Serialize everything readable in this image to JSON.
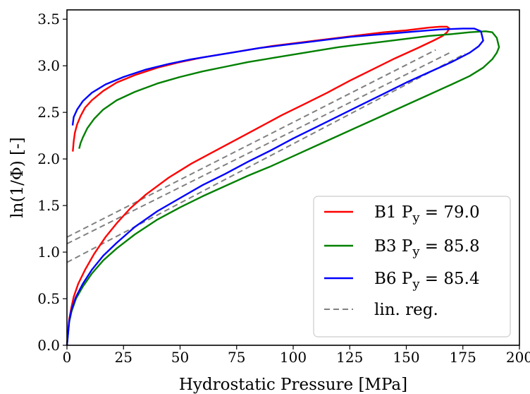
{
  "chart_data": {
    "type": "line",
    "xlabel": "Hydrostatic Pressure [MPa]",
    "ylabel": "ln(1/Φ) [-]",
    "xlim": [
      0,
      200
    ],
    "ylim": [
      0,
      3.6
    ],
    "xticks": [
      "0",
      "25",
      "50",
      "75",
      "100",
      "125",
      "150",
      "175",
      "200"
    ],
    "yticks": [
      "0.0",
      "0.5",
      "1.0",
      "1.5",
      "2.0",
      "2.5",
      "3.0",
      "3.5"
    ],
    "legend_position": "lower-right",
    "grid": false,
    "series": [
      {
        "name": "B1",
        "sub": "y",
        "value": "= 79.0",
        "color": "#ff0000",
        "style": "solid",
        "loading": {
          "x": [
            0,
            1,
            2,
            3,
            5,
            8,
            12,
            17,
            22,
            28,
            35,
            45,
            55,
            65,
            75,
            85,
            95,
            105,
            115,
            125,
            135,
            145,
            155,
            162,
            166,
            168,
            169
          ],
          "y": [
            0.0,
            0.28,
            0.41,
            0.52,
            0.66,
            0.81,
            0.98,
            1.16,
            1.31,
            1.47,
            1.62,
            1.8,
            1.95,
            2.08,
            2.21,
            2.34,
            2.47,
            2.59,
            2.71,
            2.84,
            2.96,
            3.08,
            3.19,
            3.27,
            3.32,
            3.36,
            3.4
          ]
        },
        "unloading": {
          "x": [
            169,
            168,
            165,
            160,
            150,
            140,
            130,
            120,
            110,
            100,
            90,
            80,
            70,
            60,
            50,
            40,
            30,
            22,
            16,
            11,
            8,
            6,
            4.5,
            3.5,
            3,
            2.6
          ],
          "y": [
            3.4,
            3.42,
            3.42,
            3.41,
            3.38,
            3.36,
            3.33,
            3.3,
            3.27,
            3.24,
            3.21,
            3.17,
            3.13,
            3.09,
            3.04,
            2.98,
            2.9,
            2.82,
            2.73,
            2.63,
            2.55,
            2.46,
            2.37,
            2.28,
            2.19,
            2.08
          ]
        }
      },
      {
        "name": "B3",
        "sub": "y",
        "value": "= 85.8",
        "color": "#008000",
        "style": "solid",
        "loading": {
          "x": [
            0,
            1,
            2,
            4,
            7,
            11,
            16,
            22,
            30,
            40,
            50,
            60,
            70,
            80,
            90,
            100,
            110,
            120,
            130,
            140,
            150,
            160,
            170,
            178,
            184,
            188,
            190,
            191
          ],
          "y": [
            0.0,
            0.25,
            0.36,
            0.5,
            0.63,
            0.77,
            0.91,
            1.04,
            1.19,
            1.35,
            1.48,
            1.6,
            1.71,
            1.82,
            1.92,
            2.03,
            2.14,
            2.25,
            2.36,
            2.47,
            2.58,
            2.69,
            2.8,
            2.89,
            2.98,
            3.07,
            3.14,
            3.2
          ]
        },
        "unloading": {
          "x": [
            191,
            190,
            188,
            185,
            178,
            170,
            160,
            150,
            140,
            130,
            120,
            110,
            100,
            90,
            80,
            70,
            60,
            50,
            40,
            30,
            22,
            16,
            12,
            9,
            7,
            6,
            5.4
          ],
          "y": [
            3.2,
            3.3,
            3.36,
            3.37,
            3.36,
            3.34,
            3.32,
            3.29,
            3.26,
            3.23,
            3.2,
            3.16,
            3.12,
            3.08,
            3.04,
            2.99,
            2.94,
            2.88,
            2.81,
            2.72,
            2.63,
            2.53,
            2.43,
            2.33,
            2.23,
            2.17,
            2.11
          ]
        }
      },
      {
        "name": "B6",
        "sub": "y",
        "value": "= 85.4",
        "color": "#0000ff",
        "style": "solid",
        "loading": {
          "x": [
            0,
            1,
            2,
            4,
            7,
            11,
            16,
            22,
            30,
            40,
            50,
            60,
            70,
            80,
            90,
            100,
            110,
            120,
            130,
            140,
            150,
            160,
            170,
            178,
            182,
            184
          ],
          "y": [
            0.0,
            0.26,
            0.38,
            0.52,
            0.66,
            0.81,
            0.96,
            1.1,
            1.27,
            1.44,
            1.58,
            1.72,
            1.84,
            1.97,
            2.09,
            2.22,
            2.34,
            2.46,
            2.58,
            2.7,
            2.82,
            2.93,
            3.04,
            3.14,
            3.21,
            3.27
          ]
        },
        "unloading": {
          "x": [
            184,
            183,
            180,
            175,
            165,
            155,
            145,
            135,
            125,
            115,
            105,
            95,
            85,
            75,
            65,
            55,
            45,
            35,
            25,
            17,
            11,
            7,
            4.5,
            3,
            2.5
          ],
          "y": [
            3.27,
            3.37,
            3.4,
            3.4,
            3.39,
            3.37,
            3.35,
            3.33,
            3.31,
            3.28,
            3.25,
            3.22,
            3.19,
            3.15,
            3.11,
            3.07,
            3.02,
            2.96,
            2.88,
            2.8,
            2.71,
            2.62,
            2.53,
            2.45,
            2.36
          ]
        }
      }
    ],
    "regression": {
      "name": "lin. reg.",
      "color": "#808080",
      "style": "dashed",
      "lines": [
        {
          "x": [
            0,
            163
          ],
          "y": [
            1.16,
            3.17
          ]
        },
        {
          "x": [
            0,
            170
          ],
          "y": [
            1.09,
            3.15
          ]
        },
        {
          "x": [
            0,
            176
          ],
          "y": [
            0.89,
            3.13
          ]
        }
      ]
    }
  }
}
